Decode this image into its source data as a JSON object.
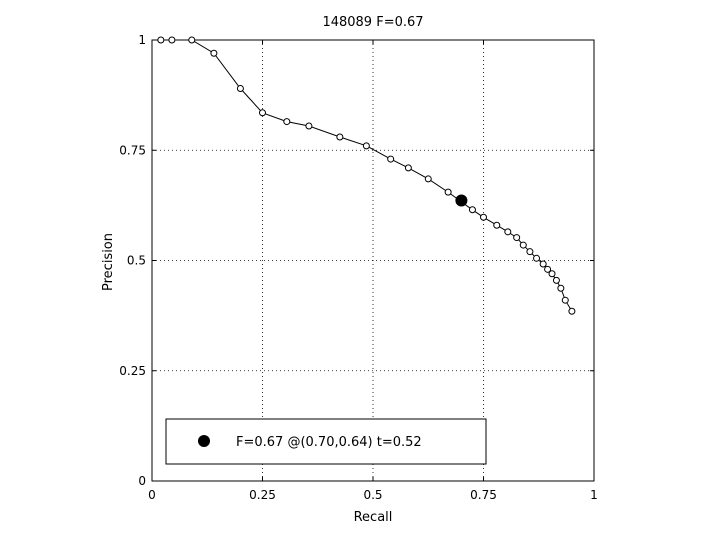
{
  "chart_data": {
    "type": "line",
    "title": "148089 F=0.67",
    "xlabel": "Recall",
    "ylabel": "Precision",
    "xlim": [
      0,
      1
    ],
    "ylim": [
      0,
      1
    ],
    "grid": true,
    "legend_position": "bottom",
    "x_ticks": [
      0,
      0.25,
      0.5,
      0.75,
      1
    ],
    "x_tick_labels": [
      "0",
      "0.25",
      "0.5",
      "0.75",
      "1"
    ],
    "y_ticks": [
      0,
      0.25,
      0.5,
      0.75,
      1
    ],
    "y_tick_labels": [
      "0",
      "0.25",
      "0.5",
      "0.75",
      "1"
    ],
    "series": [
      {
        "x": [
          0.02,
          0.045,
          0.09,
          0.14,
          0.2,
          0.25,
          0.305,
          0.355,
          0.425,
          0.485,
          0.54,
          0.58,
          0.625,
          0.67,
          0.725,
          0.75,
          0.78,
          0.805,
          0.825,
          0.84,
          0.855,
          0.87,
          0.885,
          0.895,
          0.905,
          0.915,
          0.925,
          0.935,
          0.95
        ],
        "y": [
          1.0,
          1.0,
          1.0,
          0.97,
          0.89,
          0.835,
          0.815,
          0.805,
          0.78,
          0.76,
          0.73,
          0.71,
          0.685,
          0.655,
          0.615,
          0.598,
          0.58,
          0.565,
          0.552,
          0.535,
          0.52,
          0.505,
          0.492,
          0.48,
          0.47,
          0.455,
          0.437,
          0.41,
          0.385
        ]
      }
    ],
    "best_point": {
      "x": 0.7,
      "y": 0.636
    },
    "legend": {
      "label": "F=0.67 @(0.70,0.64) t=0.52"
    }
  }
}
